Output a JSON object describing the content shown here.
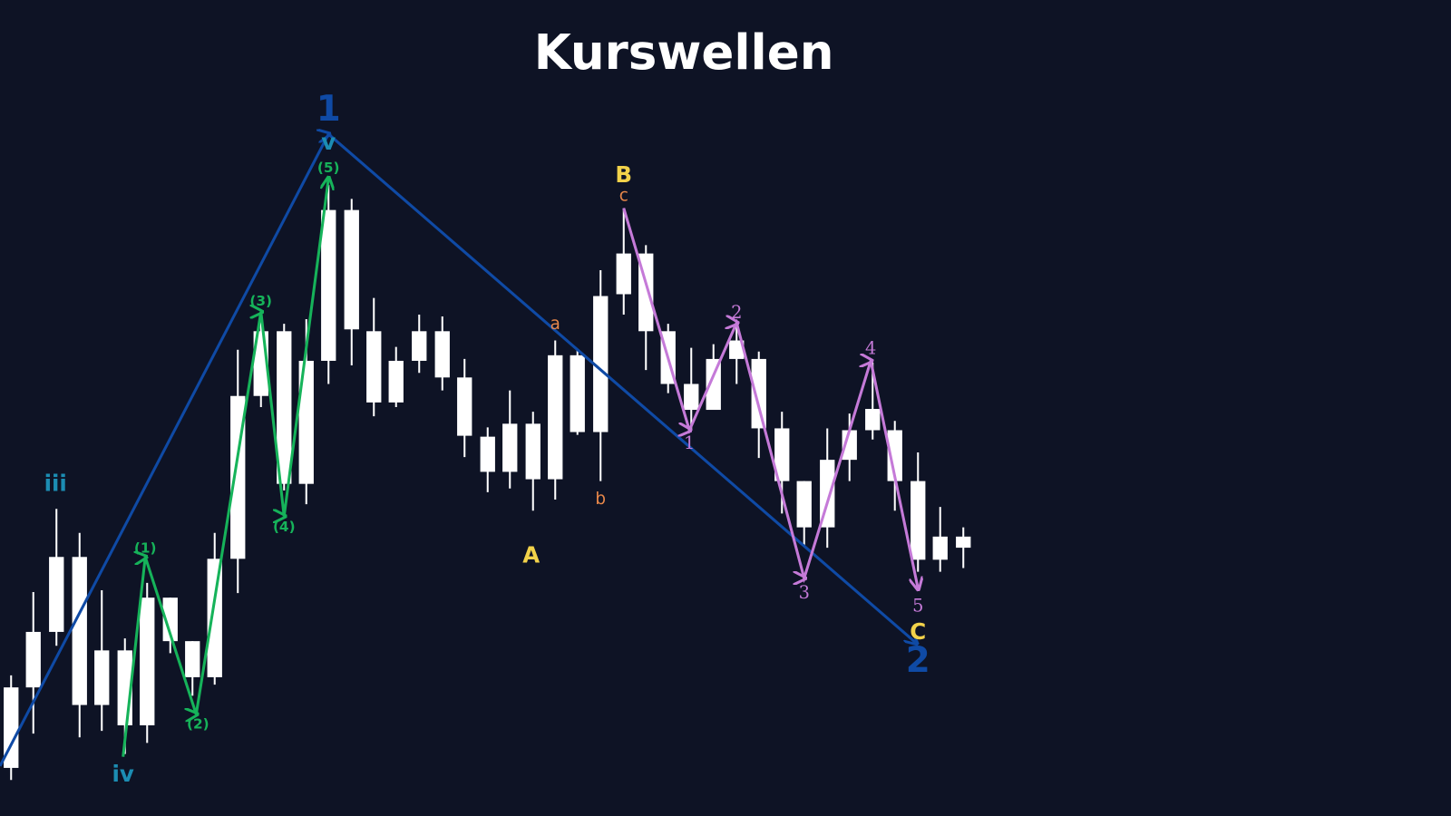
{
  "header": {
    "title": "Kurswellen"
  },
  "labels": {
    "primary": [
      "1",
      "2"
    ],
    "intermediate": [
      "iii",
      "iv",
      "v"
    ],
    "minor": [
      "(1)",
      "(2)",
      "(3)",
      "(4)",
      "(5)"
    ],
    "correction": [
      "A",
      "B",
      "C"
    ],
    "sub_correction": [
      "a",
      "b",
      "c"
    ],
    "impulse": [
      "1",
      "2",
      "3",
      "4",
      "5"
    ]
  }
}
